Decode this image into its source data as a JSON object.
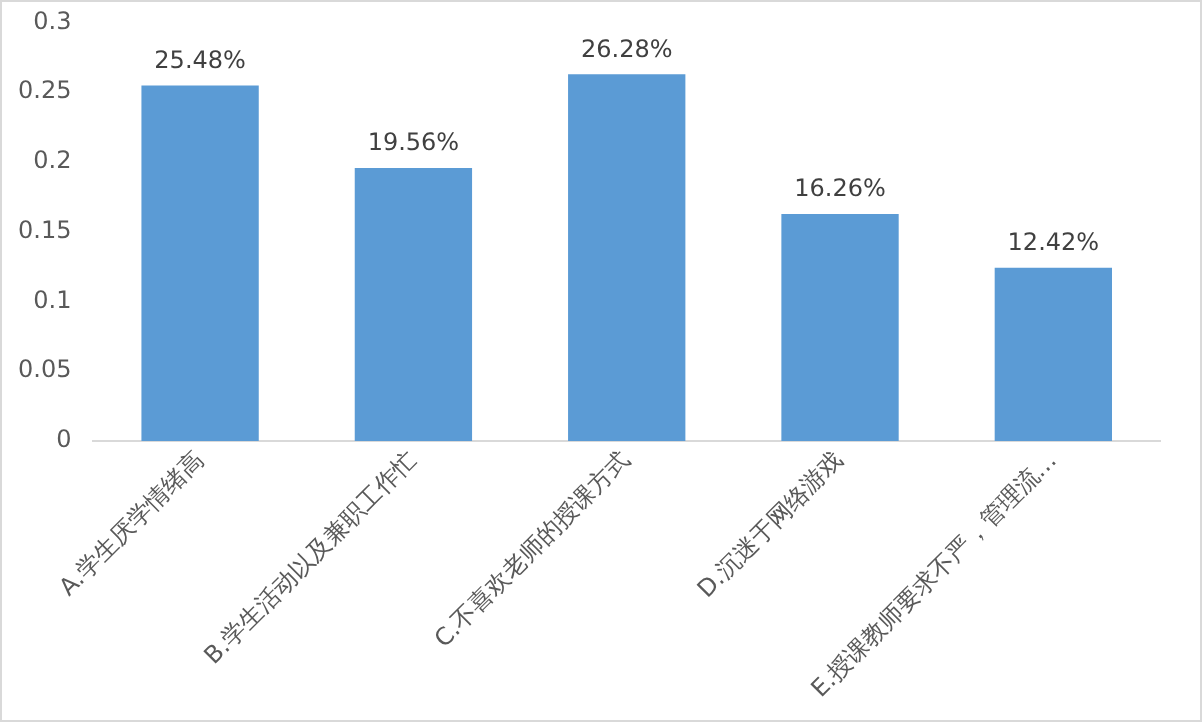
{
  "chart_data": {
    "type": "bar",
    "categories": [
      "A.学生厌学情绪高",
      "B.学生活动以及兼职工作忙",
      "C.不喜欢老师的授课方式",
      "D.沉迷于网络游戏",
      "E.授课教师要求不严，管理流…"
    ],
    "values": [
      0.2548,
      0.1956,
      0.2628,
      0.1626,
      0.1242
    ],
    "value_labels": [
      "25.48%",
      "19.56%",
      "26.28%",
      "16.26%",
      "12.42%"
    ],
    "color": "#5b9bd5",
    "ylim": [
      0,
      0.3
    ],
    "yticks": [
      0,
      0.05,
      0.1,
      0.15,
      0.2,
      0.25,
      0.3
    ],
    "grid": false,
    "legend": false
  }
}
